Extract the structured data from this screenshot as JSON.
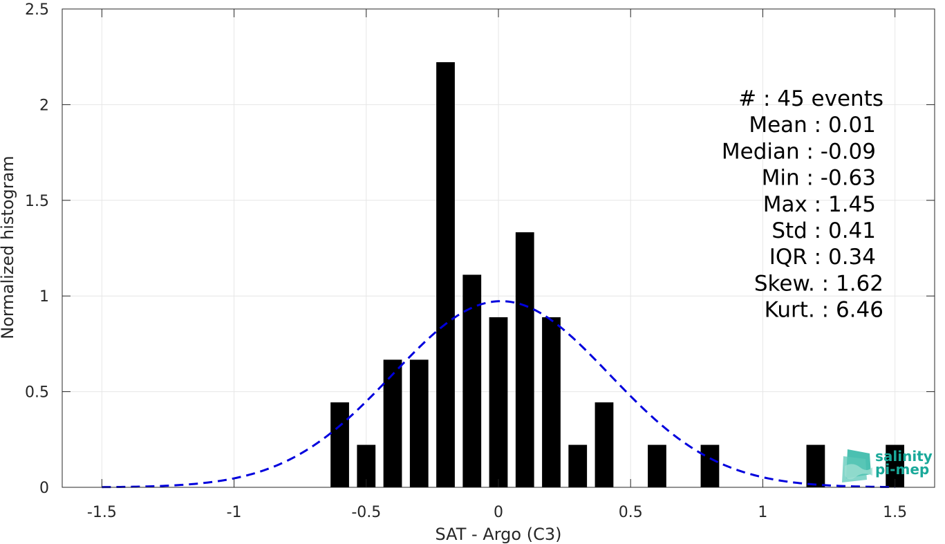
{
  "chart_data": {
    "type": "bar",
    "xlabel": "SAT - Argo (C3)",
    "ylabel": "Normalized histogram",
    "xlim": [
      -1.65,
      1.65
    ],
    "ylim": [
      0,
      2.5
    ],
    "x_ticks": [
      -1.5,
      -1,
      -0.5,
      0,
      0.5,
      1,
      1.5
    ],
    "x_tick_labels": [
      "-1.5",
      "-1",
      "-0.5",
      "0",
      "0.5",
      "1",
      "1.5"
    ],
    "y_ticks": [
      0,
      0.5,
      1,
      1.5,
      2,
      2.5
    ],
    "y_tick_labels": [
      "0",
      "0.5",
      "1",
      "1.5",
      "2",
      "2.5"
    ],
    "grid": true,
    "bin_width": 0.1,
    "bar_fraction": 0.7,
    "bar_color": "#000000",
    "bins": [
      {
        "x": -0.6,
        "y": 0.444
      },
      {
        "x": -0.5,
        "y": 0.222
      },
      {
        "x": -0.4,
        "y": 0.667
      },
      {
        "x": -0.3,
        "y": 0.667
      },
      {
        "x": -0.2,
        "y": 2.222
      },
      {
        "x": -0.1,
        "y": 1.111
      },
      {
        "x": 0.0,
        "y": 0.889
      },
      {
        "x": 0.1,
        "y": 1.333
      },
      {
        "x": 0.2,
        "y": 0.889
      },
      {
        "x": 0.3,
        "y": 0.222
      },
      {
        "x": 0.4,
        "y": 0.444
      },
      {
        "x": 0.6,
        "y": 0.222
      },
      {
        "x": 0.8,
        "y": 0.222
      },
      {
        "x": 1.2,
        "y": 0.222
      },
      {
        "x": 1.5,
        "y": 0.222
      }
    ],
    "fit": {
      "type": "gaussian",
      "mean": 0.01,
      "std": 0.41,
      "x_range": [
        -1.5,
        1.5
      ],
      "color": "#0000dd",
      "style": "dashed"
    },
    "stats": [
      "#  : 45 events",
      "Mean : 0.01",
      "Median : -0.09",
      "Min : -0.63",
      "Max : 1.45",
      "Std : 0.41",
      "IQR : 0.34",
      "Skew. : 1.62",
      "Kurt. : 6.46"
    ],
    "stats_placement": "top-right"
  },
  "logo": {
    "line1": "salinity",
    "line2": "pi-mep",
    "color": "#1aa99a"
  }
}
